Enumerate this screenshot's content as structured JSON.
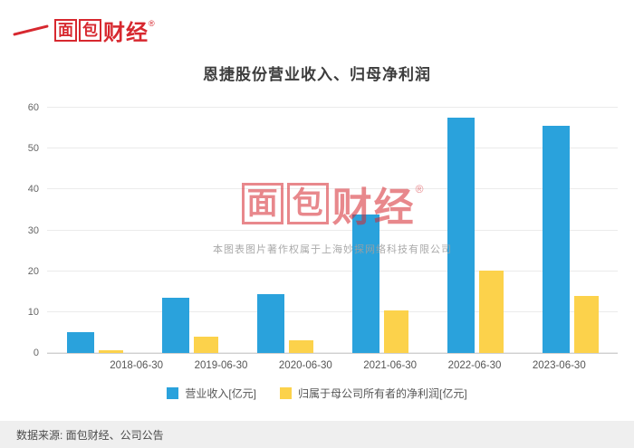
{
  "brand": {
    "char_boxed_1": "面",
    "char_boxed_2": "包",
    "char_rest": "财经",
    "registered": "®"
  },
  "title": "恩捷股份营业收入、归母净利润",
  "watermark": {
    "char_boxed_1": "面",
    "char_boxed_2": "包",
    "char_rest": "财经",
    "registered": "®",
    "copyright_text": "本图表图片著作权属于上海妙探网络科技有限公司"
  },
  "footer": {
    "source_text": "数据来源: 面包财经、公司公告"
  },
  "colors": {
    "revenue_blue": "#2AA2DC",
    "profit_yellow": "#FCD24B",
    "brand_red": "#D7282F",
    "grid": "#ebebeb",
    "axis": "#cfcfcf"
  },
  "chart_data": {
    "type": "bar",
    "title": "恩捷股份营业收入、归母净利润",
    "categories": [
      "2018-06-30",
      "2019-06-30",
      "2020-06-30",
      "2021-06-30",
      "2022-06-30",
      "2023-06-30"
    ],
    "series": [
      {
        "name": "营业收入[亿元]",
        "color": "#2AA2DC",
        "values": [
          5.2,
          13.6,
          14.3,
          33.8,
          57.5,
          55.6
        ]
      },
      {
        "name": "归属于母公司所有者的净利润[亿元]",
        "color": "#FCD24B",
        "values": [
          0.6,
          3.9,
          3.2,
          10.4,
          20.2,
          14.0
        ]
      }
    ],
    "xlabel": "",
    "ylabel": "",
    "ylim": [
      0,
      60
    ],
    "yticks": [
      0,
      10,
      20,
      30,
      40,
      50,
      60
    ],
    "grid": true,
    "legend_position": "bottom"
  }
}
